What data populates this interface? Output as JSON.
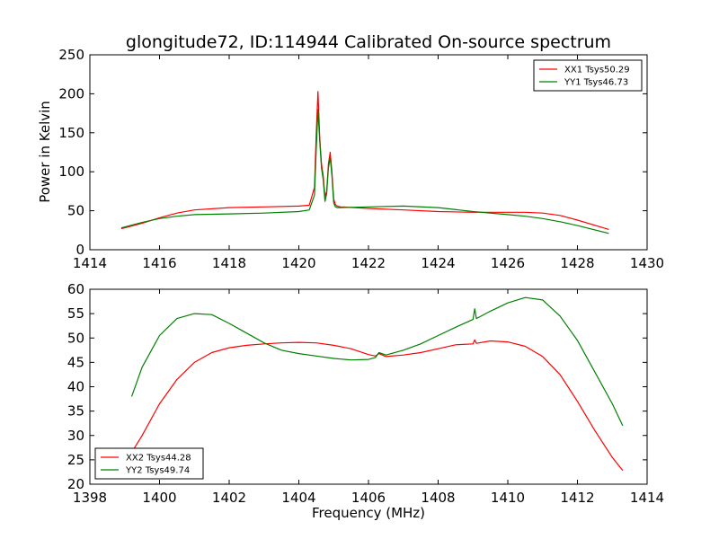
{
  "chart_data": [
    {
      "type": "line",
      "title": "glongitude72, ID:114944 Calibrated On-source spectrum",
      "xlabel": "",
      "ylabel": "Power in Kelvin",
      "xlim": [
        1414,
        1430
      ],
      "ylim": [
        0,
        250
      ],
      "xticks": [
        1414,
        1416,
        1418,
        1420,
        1422,
        1424,
        1426,
        1428,
        1430
      ],
      "yticks": [
        0,
        50,
        100,
        150,
        200,
        250
      ],
      "grid": false,
      "legend_position": "top-right",
      "series": [
        {
          "name": "XX1 Tsys50.29",
          "color": "#ff0000",
          "x": [
            1414.9,
            1415.5,
            1416,
            1416.5,
            1417,
            1418,
            1419,
            1420,
            1420.3,
            1420.45,
            1420.5,
            1420.55,
            1420.6,
            1420.65,
            1420.7,
            1420.75,
            1420.8,
            1420.85,
            1420.9,
            1420.95,
            1421,
            1421.05,
            1421.1,
            1421.2,
            1422,
            1423,
            1424,
            1425,
            1426,
            1426.5,
            1427,
            1427.5,
            1428,
            1428.9
          ],
          "y": [
            27,
            34,
            41,
            47,
            51,
            54,
            55,
            56,
            57,
            80,
            150,
            203,
            145,
            110,
            95,
            68,
            75,
            110,
            125,
            100,
            65,
            58,
            56,
            55,
            53,
            51,
            49,
            48,
            48,
            48,
            47,
            44,
            38,
            26
          ]
        },
        {
          "name": "YY1 Tsys46.73",
          "color": "#008000",
          "x": [
            1414.9,
            1415.5,
            1416,
            1416.5,
            1417,
            1418,
            1419,
            1420,
            1420.3,
            1420.45,
            1420.5,
            1420.55,
            1420.6,
            1420.65,
            1420.7,
            1420.75,
            1420.8,
            1420.85,
            1420.9,
            1420.95,
            1421,
            1421.05,
            1421.1,
            1421.2,
            1422,
            1423,
            1424,
            1425,
            1426,
            1426.5,
            1427,
            1427.5,
            1428,
            1428.9
          ],
          "y": [
            28,
            35,
            40,
            43,
            45,
            46,
            47,
            49,
            51,
            70,
            130,
            180,
            140,
            105,
            90,
            62,
            72,
            105,
            118,
            95,
            60,
            55,
            54,
            54,
            55,
            56,
            54,
            49,
            45,
            43,
            40,
            36,
            31,
            21
          ]
        }
      ]
    },
    {
      "type": "line",
      "title": "",
      "xlabel": "Frequency (MHz)",
      "ylabel": "",
      "xlim": [
        1398,
        1414
      ],
      "ylim": [
        20,
        60
      ],
      "xticks": [
        1398,
        1400,
        1402,
        1404,
        1406,
        1408,
        1410,
        1412,
        1414
      ],
      "yticks": [
        20,
        25,
        30,
        35,
        40,
        45,
        50,
        55,
        60
      ],
      "grid": false,
      "legend_position": "bottom-left",
      "series": [
        {
          "name": "XX2 Tsys44.28",
          "color": "#ff0000",
          "x": [
            1399.2,
            1399.5,
            1400,
            1400.5,
            1401,
            1401.5,
            1402,
            1402.5,
            1403,
            1403.5,
            1404,
            1404.5,
            1405,
            1405.5,
            1406,
            1406.2,
            1406.3,
            1406.5,
            1407,
            1407.5,
            1408,
            1408.5,
            1409,
            1409.05,
            1409.1,
            1409.5,
            1410,
            1410.5,
            1411,
            1411.5,
            1412,
            1412.5,
            1413,
            1413.3
          ],
          "y": [
            26.5,
            30,
            36.5,
            41.5,
            45,
            47,
            48,
            48.5,
            48.8,
            49,
            49.1,
            49,
            48.5,
            47.8,
            46.6,
            46.3,
            46.8,
            46.2,
            46.5,
            47,
            47.8,
            48.6,
            48.8,
            49.6,
            48.9,
            49.4,
            49.2,
            48.3,
            46.2,
            42.5,
            37,
            31,
            25.5,
            22.8
          ]
        },
        {
          "name": "YY2 Tsys49.74",
          "color": "#008000",
          "x": [
            1399.2,
            1399.5,
            1400,
            1400.5,
            1401,
            1401.5,
            1402,
            1402.5,
            1403,
            1403.5,
            1404,
            1404.5,
            1405,
            1405.5,
            1406,
            1406.2,
            1406.3,
            1406.5,
            1407,
            1407.5,
            1408,
            1408.5,
            1409,
            1409.05,
            1409.1,
            1409.5,
            1410,
            1410.5,
            1411,
            1411.5,
            1412,
            1412.5,
            1413,
            1413.3
          ],
          "y": [
            38,
            44,
            50.5,
            54,
            55,
            54.8,
            53,
            51,
            49,
            47.5,
            46.8,
            46.3,
            45.8,
            45.5,
            45.6,
            46,
            47,
            46.5,
            47.5,
            48.8,
            50.5,
            52.2,
            53.8,
            56,
            54,
            55.5,
            57.2,
            58.3,
            57.8,
            54.5,
            49.5,
            43,
            36.5,
            32
          ]
        }
      ]
    }
  ]
}
